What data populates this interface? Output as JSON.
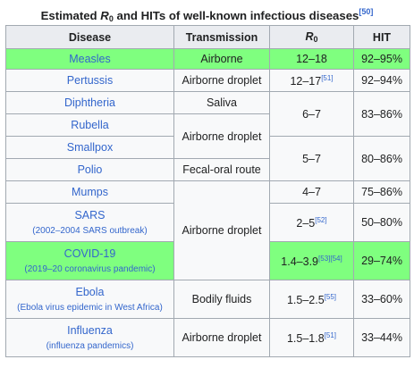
{
  "caption": {
    "prefix": "Estimated ",
    "r": "R",
    "r_sub": "0",
    "suffix": " and HITs of well-known infectious diseases",
    "ref": "[50]"
  },
  "headers": {
    "disease": "Disease",
    "transmission": "Transmission",
    "r0_main": "R",
    "r0_sub": "0",
    "hit": "HIT"
  },
  "rows": {
    "measles": {
      "name": "Measles",
      "transmission": "Airborne",
      "r0": "12–18",
      "hit": "92–95%"
    },
    "pertussis": {
      "name": "Pertussis",
      "transmission": "Airborne droplet",
      "r0": "12–17",
      "r0_ref": "[51]",
      "hit": "92–94%"
    },
    "diphtheria": {
      "name": "Diphtheria",
      "transmission": "Saliva"
    },
    "rubella": {
      "name": "Rubella"
    },
    "smallpox": {
      "name": "Smallpox"
    },
    "polio": {
      "name": "Polio",
      "transmission": "Fecal-oral route"
    },
    "mumps": {
      "name": "Mumps",
      "r0": "4–7",
      "hit": "75–86%"
    },
    "sars": {
      "name": "SARS",
      "sub": "(2002–2004 SARS outbreak)",
      "r0": "2–5",
      "r0_ref": "[52]",
      "hit": "50–80%"
    },
    "covid": {
      "name": "COVID-19",
      "sub": "(2019–20 coronavirus pandemic)",
      "r0": "1.4–3.9",
      "r0_ref1": "[53]",
      "r0_ref2": "[54]",
      "hit": "29–74%"
    },
    "ebola": {
      "name": "Ebola",
      "sub": "(Ebola virus epidemic in West Africa)",
      "transmission": "Bodily fluids",
      "r0": "1.5–2.5",
      "r0_ref": "[55]",
      "hit": "33–60%"
    },
    "influenza": {
      "name": "Influenza",
      "sub": "(influenza pandemics)",
      "transmission": "Airborne droplet",
      "r0": "1.5–1.8",
      "r0_ref": "[51]",
      "hit": "33–44%"
    }
  },
  "merged": {
    "airborne_droplet_rub_smallpox": "Airborne droplet",
    "airborne_droplet_mumps_covid": "Airborne droplet",
    "r0_diph_rub": "6–7",
    "hit_diph_rub": "83–86%",
    "r0_small_polio": "5–7",
    "hit_small_polio": "80–86%"
  },
  "colors": {
    "highlight": "#7fff7f",
    "link": "#3366cc",
    "header_bg": "#eaecf0",
    "cell_bg": "#f8f9fa",
    "border": "#a2a9b1"
  }
}
